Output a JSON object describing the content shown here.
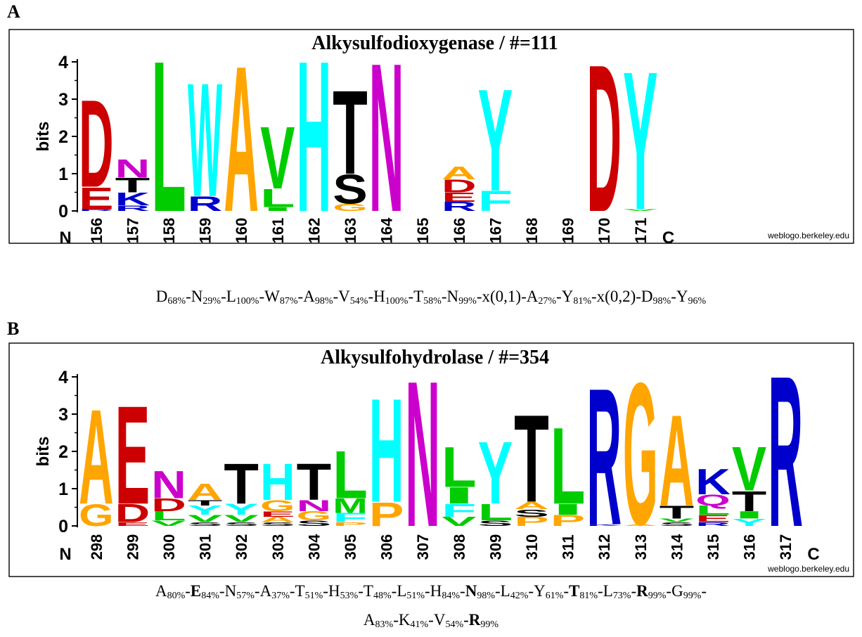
{
  "colors": {
    "A": "#FFA500",
    "C": "#0000FF",
    "D": "#CC0000",
    "E": "#CC0000",
    "F": "#00FFFF",
    "G": "#FFA500",
    "H": "#00FFFF",
    "I": "#00CC00",
    "K": "#0000CC",
    "L": "#00CC00",
    "M": "#00CC00",
    "N": "#CC00CC",
    "P": "#FFA500",
    "Q": "#CC00CC",
    "R": "#0000CC",
    "S": "#000000",
    "T": "#000000",
    "V": "#00CC00",
    "W": "#00FFFF",
    "Y": "#00FFFF"
  },
  "chart_data": [
    {
      "type": "sequence-logo",
      "panel": "A",
      "title": "Alkysulfodioxygenase / #=111",
      "ylabel": "bits",
      "ylim": [
        0,
        4
      ],
      "yticks": [
        "0",
        "1",
        "2",
        "3",
        "4"
      ],
      "n_label": "N",
      "c_label": "C",
      "credit": "weblogo.berkeley.edu",
      "positions": [
        {
          "pos": "156",
          "stack": [
            [
              "R",
              0.05
            ],
            [
              "E",
              0.6
            ],
            [
              "D",
              2.4
            ]
          ]
        },
        {
          "pos": "157",
          "stack": [
            [
              "R",
              0.15
            ],
            [
              "K",
              0.35
            ],
            [
              "T",
              0.4
            ],
            [
              "N",
              0.5
            ]
          ]
        },
        {
          "pos": "158",
          "stack": [
            [
              "L",
              4.14
            ]
          ]
        },
        {
          "pos": "159",
          "stack": [
            [
              "R",
              0.4
            ],
            [
              "W",
              3.12
            ]
          ]
        },
        {
          "pos": "160",
          "stack": [
            [
              "A",
              4.0
            ]
          ]
        },
        {
          "pos": "161",
          "stack": [
            [
              "I",
              0.1
            ],
            [
              "L",
              0.5
            ],
            [
              "V",
              1.7
            ]
          ]
        },
        {
          "pos": "162",
          "stack": [
            [
              "H",
              4.14
            ]
          ]
        },
        {
          "pos": "163",
          "stack": [
            [
              "G",
              0.2
            ],
            [
              "S",
              0.8
            ],
            [
              "T",
              2.3
            ]
          ]
        },
        {
          "pos": "164",
          "stack": [
            [
              "N",
              4.08
            ]
          ]
        },
        {
          "pos": "165",
          "stack": []
        },
        {
          "pos": "166",
          "stack": [
            [
              "R",
              0.25
            ],
            [
              "E",
              0.25
            ],
            [
              "D",
              0.35
            ],
            [
              "A",
              0.35
            ]
          ]
        },
        {
          "pos": "167",
          "stack": [
            [
              "F",
              0.55
            ],
            [
              "Y",
              2.8
            ]
          ]
        },
        {
          "pos": "168",
          "stack": []
        },
        {
          "pos": "169",
          "stack": []
        },
        {
          "pos": "170",
          "stack": [
            [
              "D",
              4.04
            ]
          ]
        },
        {
          "pos": "171",
          "stack": [
            [
              "V",
              0.05
            ],
            [
              "Y",
              3.8
            ]
          ]
        }
      ]
    },
    {
      "type": "sequence-logo",
      "panel": "B",
      "title": "Alkysulfohydrolase / #=354",
      "ylabel": "bits",
      "ylim": [
        0,
        4
      ],
      "yticks": [
        "0",
        "1",
        "2",
        "3",
        "4"
      ],
      "n_label": "N",
      "c_label": "C",
      "credit": "weblogo.berkeley.edu",
      "positions": [
        {
          "pos": "298",
          "stack": [
            [
              "G",
              0.6
            ],
            [
              "A",
              2.6
            ]
          ]
        },
        {
          "pos": "299",
          "stack": [
            [
              "E",
              0.1
            ],
            [
              "D",
              0.5
            ],
            [
              "E",
              2.7
            ]
          ]
        },
        {
          "pos": "300",
          "stack": [
            [
              "V",
              0.15
            ],
            [
              "L",
              0.25
            ],
            [
              "D",
              0.35
            ],
            [
              "N",
              0.75
            ]
          ]
        },
        {
          "pos": "301",
          "stack": [
            [
              "S",
              0.1
            ],
            [
              "V",
              0.2
            ],
            [
              "Y",
              0.25
            ],
            [
              "T",
              0.15
            ],
            [
              "A",
              0.45
            ]
          ]
        },
        {
          "pos": "302",
          "stack": [
            [
              "S",
              0.1
            ],
            [
              "V",
              0.2
            ],
            [
              "Y",
              0.3
            ],
            [
              "T",
              1.1
            ]
          ]
        },
        {
          "pos": "303",
          "stack": [
            [
              "S",
              0.1
            ],
            [
              "A",
              0.15
            ],
            [
              "E",
              0.15
            ],
            [
              "G",
              0.3
            ],
            [
              "H",
              1.0
            ]
          ]
        },
        {
          "pos": "304",
          "stack": [
            [
              "S",
              0.15
            ],
            [
              "G",
              0.25
            ],
            [
              "N",
              0.3
            ],
            [
              "T",
              1.0
            ]
          ]
        },
        {
          "pos": "305",
          "stack": [
            [
              "P",
              0.1
            ],
            [
              "F",
              0.25
            ],
            [
              "M",
              0.4
            ],
            [
              "L",
              1.3
            ]
          ]
        },
        {
          "pos": "306",
          "stack": [
            [
              "P",
              0.65
            ],
            [
              "H",
              2.85
            ]
          ]
        },
        {
          "pos": "307",
          "stack": [
            [
              "N",
              4.0
            ]
          ]
        },
        {
          "pos": "308",
          "stack": [
            [
              "V",
              0.25
            ],
            [
              "F",
              0.35
            ],
            [
              "I",
              0.45
            ],
            [
              "L",
              1.1
            ]
          ]
        },
        {
          "pos": "309",
          "stack": [
            [
              "S",
              0.15
            ],
            [
              "L",
              0.45
            ],
            [
              "Y",
              1.7
            ]
          ]
        },
        {
          "pos": "310",
          "stack": [
            [
              "P",
              0.25
            ],
            [
              "S",
              0.2
            ],
            [
              "A",
              0.2
            ],
            [
              "T",
              2.4
            ]
          ]
        },
        {
          "pos": "311",
          "stack": [
            [
              "P",
              0.3
            ],
            [
              "I",
              0.3
            ],
            [
              "L",
              2.1
            ]
          ]
        },
        {
          "pos": "312",
          "stack": [
            [
              "K",
              0.05
            ],
            [
              "R",
              3.75
            ]
          ]
        },
        {
          "pos": "313",
          "stack": [
            [
              "A",
              0.05
            ],
            [
              "G",
              3.9
            ]
          ]
        },
        {
          "pos": "314",
          "stack": [
            [
              "S",
              0.1
            ],
            [
              "V",
              0.1
            ],
            [
              "T",
              0.35
            ],
            [
              "A",
              2.5
            ]
          ]
        },
        {
          "pos": "315",
          "stack": [
            [
              "R",
              0.1
            ],
            [
              "E",
              0.2
            ],
            [
              "L",
              0.25
            ],
            [
              "Q",
              0.3
            ],
            [
              "K",
              0.7
            ]
          ]
        },
        {
          "pos": "316",
          "stack": [
            [
              "Y",
              0.2
            ],
            [
              "I",
              0.2
            ],
            [
              "T",
              0.55
            ],
            [
              "V",
              1.2
            ]
          ]
        },
        {
          "pos": "317",
          "stack": [
            [
              "R",
              4.14
            ]
          ]
        }
      ]
    }
  ],
  "consensus_a": [
    {
      "aa": "D",
      "pct": "68%",
      "sep": "-"
    },
    {
      "aa": "N",
      "pct": "29%",
      "sep": "-"
    },
    {
      "aa": "L",
      "pct": "100%",
      "sep": "-"
    },
    {
      "aa": "W",
      "pct": "87%",
      "sep": "-"
    },
    {
      "aa": "A",
      "pct": "98%",
      "sep": "-"
    },
    {
      "aa": "V",
      "pct": "54%",
      "sep": "-"
    },
    {
      "aa": "H",
      "pct": "100%",
      "sep": "-"
    },
    {
      "aa": "T",
      "pct": "58%",
      "sep": "-"
    },
    {
      "aa": "N",
      "pct": "99%",
      "sep": "-"
    },
    {
      "aa": "x(0,1)",
      "pct": "",
      "sep": "-"
    },
    {
      "aa": "A",
      "pct": "27%",
      "sep": "-"
    },
    {
      "aa": "Y",
      "pct": "81%",
      "sep": "-"
    },
    {
      "aa": "x(0,2)",
      "pct": "",
      "sep": "-"
    },
    {
      "aa": "D",
      "pct": "98%",
      "sep": "-"
    },
    {
      "aa": "Y",
      "pct": "96%",
      "sep": ""
    }
  ],
  "consensus_b_line1": [
    {
      "aa": "A",
      "pct": "80%",
      "bold": false,
      "sep": "-"
    },
    {
      "aa": "E",
      "pct": "84%",
      "bold": true,
      "sep": "-"
    },
    {
      "aa": "N",
      "pct": "57%",
      "bold": false,
      "sep": "-"
    },
    {
      "aa": "A",
      "pct": "37%",
      "bold": false,
      "sep": "-"
    },
    {
      "aa": "T",
      "pct": "51%",
      "bold": false,
      "sep": "-"
    },
    {
      "aa": "H",
      "pct": "53%",
      "bold": false,
      "sep": "-"
    },
    {
      "aa": "T",
      "pct": "48%",
      "bold": false,
      "sep": "-"
    },
    {
      "aa": "L",
      "pct": "51%",
      "bold": false,
      "sep": "-"
    },
    {
      "aa": "H",
      "pct": "84%",
      "bold": false,
      "sep": "-"
    },
    {
      "aa": "N",
      "pct": "98%",
      "bold": true,
      "sep": "-"
    },
    {
      "aa": "L",
      "pct": "42%",
      "bold": false,
      "sep": "-"
    },
    {
      "aa": "Y",
      "pct": "61%",
      "bold": false,
      "sep": "-"
    },
    {
      "aa": "T",
      "pct": "81%",
      "bold": true,
      "sep": "-"
    },
    {
      "aa": "L",
      "pct": "73%",
      "bold": false,
      "sep": "-"
    },
    {
      "aa": "R",
      "pct": "99%",
      "bold": true,
      "sep": "-"
    },
    {
      "aa": "G",
      "pct": "99%",
      "bold": false,
      "sep": "-"
    }
  ],
  "consensus_b_line2": [
    {
      "aa": "A",
      "pct": "83%",
      "bold": false,
      "sep": "-"
    },
    {
      "aa": "K",
      "pct": "41%",
      "bold": false,
      "sep": "-"
    },
    {
      "aa": "V",
      "pct": "54%",
      "bold": false,
      "sep": "-"
    },
    {
      "aa": "R",
      "pct": "99%",
      "bold": true,
      "sep": ""
    }
  ]
}
